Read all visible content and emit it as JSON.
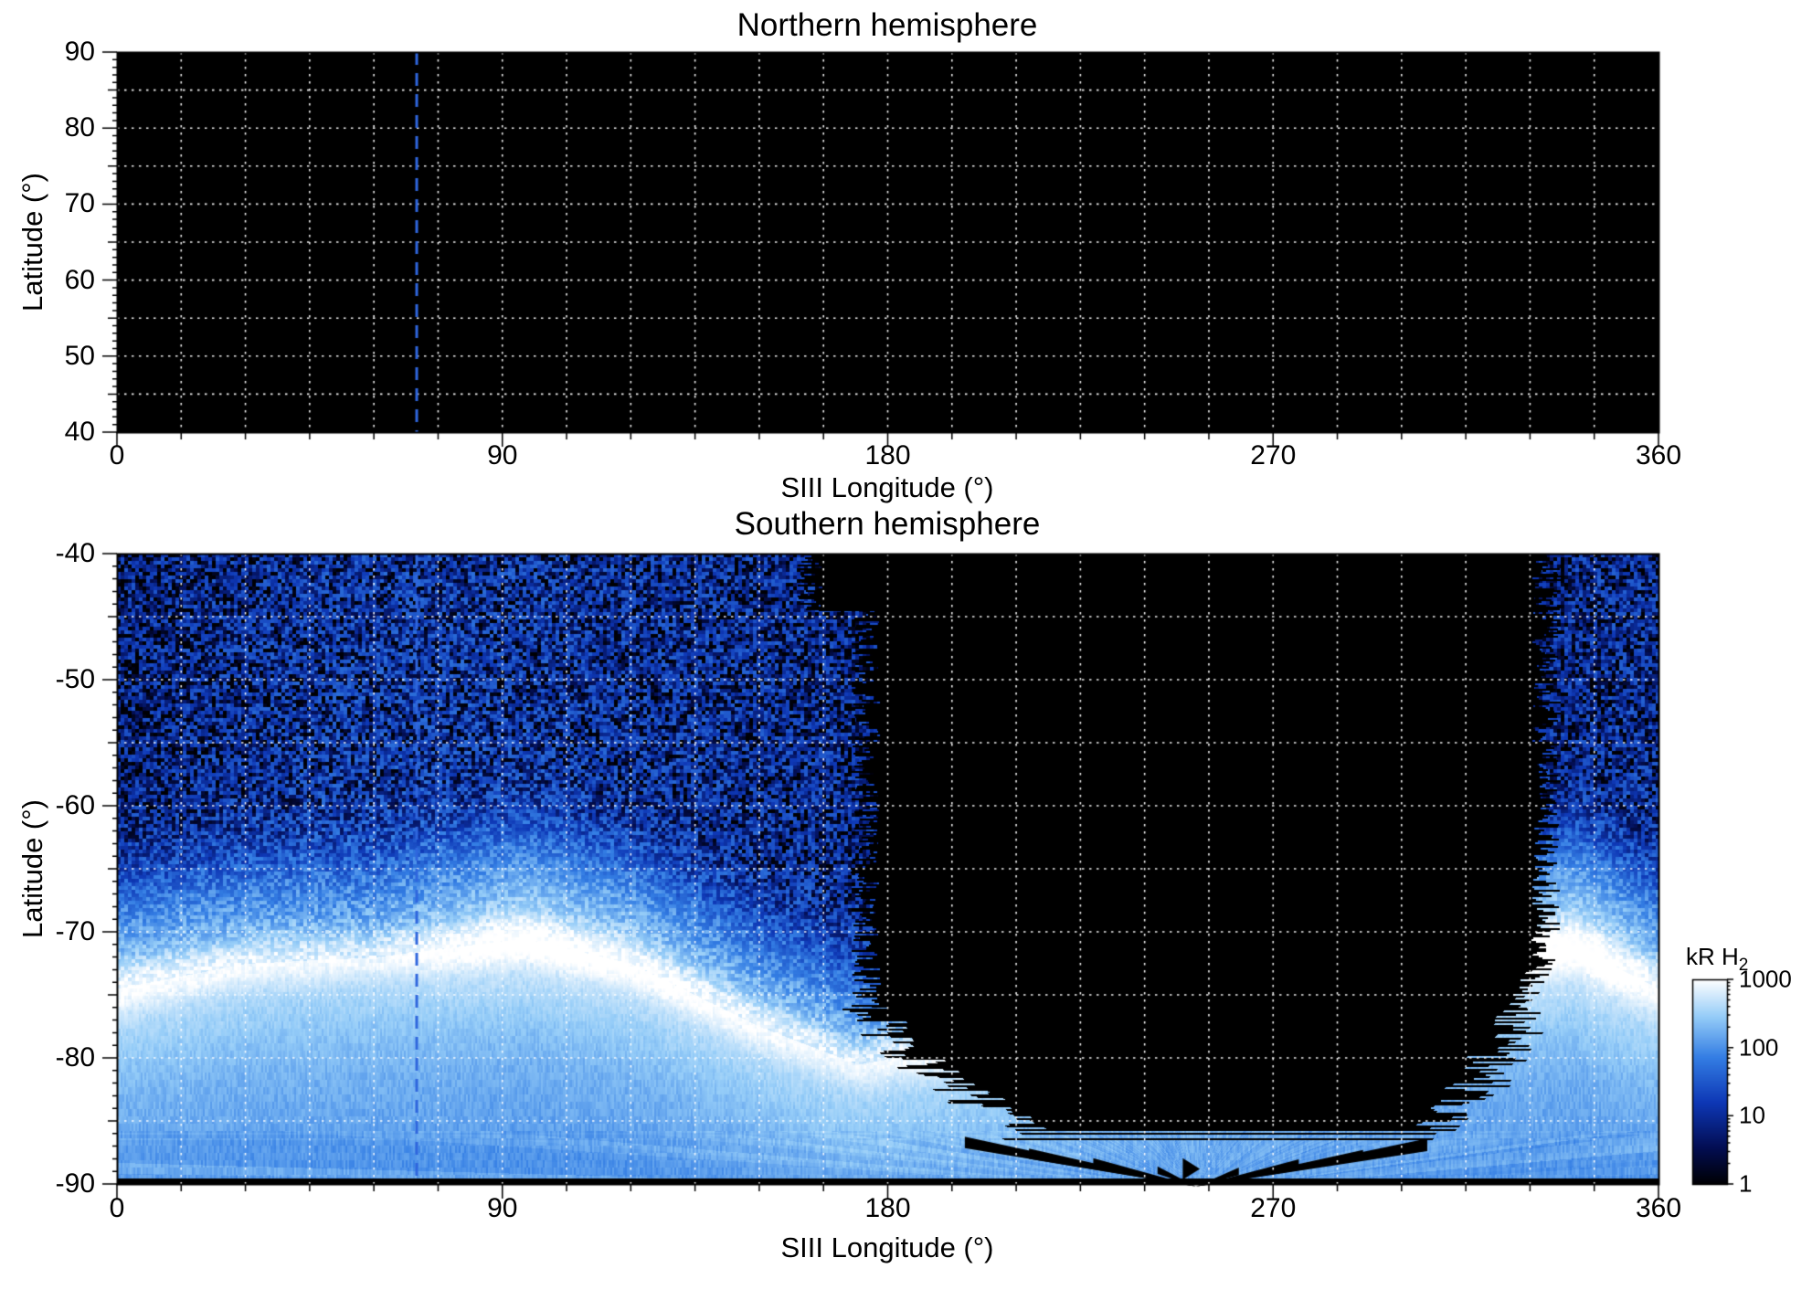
{
  "panels": {
    "north": {
      "title": "Northern hemisphere",
      "xlabel": "SIII Longitude (°)",
      "ylabel": "Latitude (°)",
      "xticks": [
        0,
        90,
        180,
        270,
        360
      ],
      "yticks": [
        90,
        80,
        70,
        60,
        50,
        40
      ],
      "xlim": [
        0,
        360
      ],
      "ylim_top": 90,
      "ylim_range": 50
    },
    "south": {
      "title": "Southern hemisphere",
      "xlabel": "SIII Longitude (°)",
      "ylabel": "Latitude (°)",
      "xticks": [
        0,
        90,
        180,
        270,
        360
      ],
      "yticks": [
        -40,
        -50,
        -60,
        -70,
        -80,
        -90
      ],
      "xlim": [
        0,
        360
      ],
      "ylim_top": -40,
      "ylim_range": 50
    }
  },
  "colorbar": {
    "label_main": "kR H",
    "label_sub": "2",
    "ticks": [
      "1000",
      "100",
      "10",
      "1"
    ],
    "scale": "log",
    "range": [
      1,
      1000
    ]
  },
  "colors": {
    "figure_bg": "#ffffff",
    "plot_bg": "#000000",
    "grid": "rgba(255,255,255,0.95)",
    "meridian_line": "#2f66dd",
    "frame": "#000000",
    "text": "#000000"
  },
  "chart_data": {
    "type": "heatmap",
    "quantity": "H2 auroral emission brightness",
    "units": "kR H2",
    "value_range": [
      1,
      1000
    ],
    "scale": "log",
    "x": {
      "label": "SIII Longitude (°)",
      "range": [
        0,
        360
      ],
      "ticks": [
        0,
        90,
        180,
        270,
        360
      ],
      "grid_step_deg": 15
    },
    "y_grid_step_deg": 5,
    "panel_summaries": [
      {
        "title": "Northern hemisphere",
        "lat_range": [
          40,
          90
        ],
        "content": "no emission visible (black field with white dotted grid)"
      },
      {
        "title": "Southern hemisphere",
        "lat_range": [
          -90,
          -40
        ],
        "content": "southern auroral oval emission map with unobserved black sector near longitudes 173-332"
      }
    ],
    "meridian_line_longitude": 70,
    "south": {
      "observed_longitude_ranges": [
        [
          0,
          173
        ],
        [
          332,
          360
        ]
      ],
      "polar_band_lat_range": [
        -90,
        -86.3
      ],
      "bottom_black_strip_lat": -89.55,
      "auroral_oval_centerline": [
        [
          0,
          -74.5
        ],
        [
          30,
          -72.5
        ],
        [
          60,
          -72.0
        ],
        [
          95,
          -70.5
        ],
        [
          120,
          -72.5
        ],
        [
          150,
          -77.5
        ],
        [
          173,
          -80.5
        ],
        [
          340,
          -71.0
        ],
        [
          360,
          -74.5
        ]
      ],
      "oval_peak_kR": [
        [
          0,
          600
        ],
        [
          30,
          480
        ],
        [
          60,
          420
        ],
        [
          95,
          900
        ],
        [
          120,
          700
        ],
        [
          150,
          520
        ],
        [
          173,
          430
        ],
        [
          345,
          1000
        ],
        [
          360,
          620
        ]
      ],
      "diffuse_polar_kR": 150,
      "background_speckle_kR": 8,
      "wedge_apex": [
        252,
        -90.2
      ],
      "arrow_marker": [
        251.5,
        -88.8
      ],
      "bottom_wedges": [
        [
          198,
          -86.7,
          0.45
        ],
        [
          213,
          -87.6,
          0.4
        ],
        [
          228,
          -88.3,
          0.35
        ],
        [
          243,
          -88.9,
          0.3
        ],
        [
          306,
          -86.9,
          0.5
        ],
        [
          291,
          -87.7,
          0.4
        ],
        [
          276,
          -88.4,
          0.35
        ],
        [
          262,
          -89.0,
          0.3
        ]
      ]
    }
  }
}
